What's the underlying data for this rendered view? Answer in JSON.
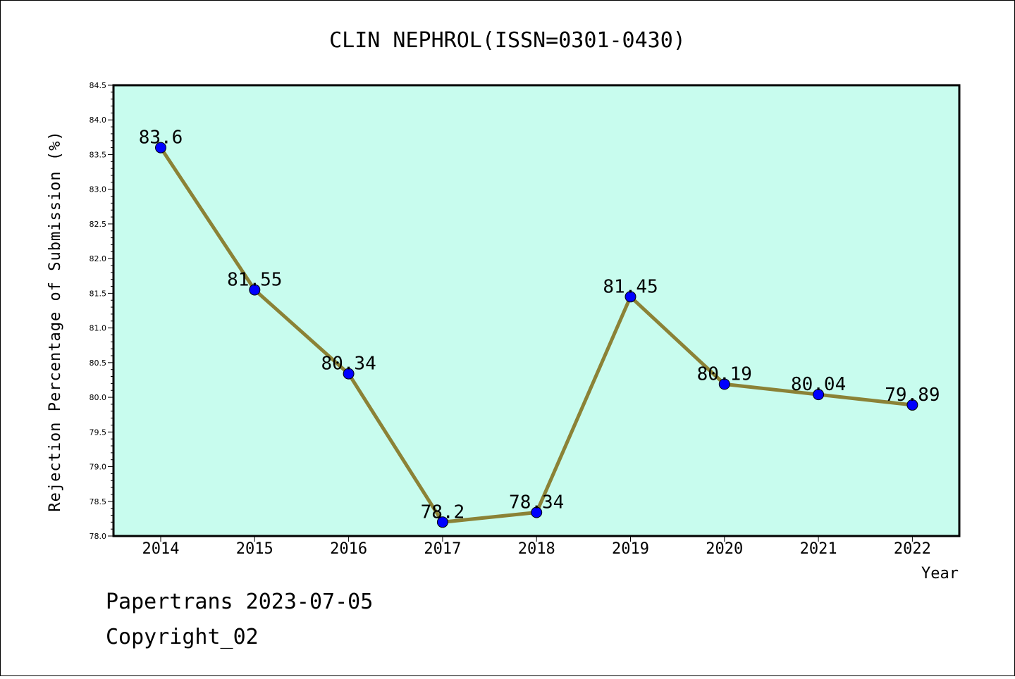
{
  "chart_data": {
    "type": "line",
    "title": "CLIN NEPHROL(ISSN=0301-0430)",
    "xlabel": "Year",
    "ylabel": "Rejection Percentage of Submission (%)",
    "categories": [
      "2014",
      "2015",
      "2016",
      "2017",
      "2018",
      "2019",
      "2020",
      "2021",
      "2022"
    ],
    "series": [
      {
        "values": [
          83.6,
          81.55,
          80.34,
          78.2,
          78.34,
          81.45,
          80.19,
          80.04,
          79.89
        ],
        "labels": [
          "83.6",
          "81.55",
          "80.34",
          "78.2",
          "78.34",
          "81.45",
          "80.19",
          "80.04",
          "79.89"
        ]
      }
    ],
    "ylim": [
      78.0,
      84.5
    ],
    "yticks": [
      "78.0",
      "78.5",
      "79.0",
      "79.5",
      "80.0",
      "80.5",
      "81.0",
      "81.5",
      "82.0",
      "82.5",
      "83.0",
      "83.5",
      "84.0",
      "84.5"
    ],
    "grid": false,
    "colors": {
      "plot_background": "#c8fcee",
      "line": "#8b8236",
      "marker": "#0000ff"
    }
  },
  "footer": {
    "line1": "Papertrans 2023-07-05",
    "line2": "Copyright_02"
  }
}
